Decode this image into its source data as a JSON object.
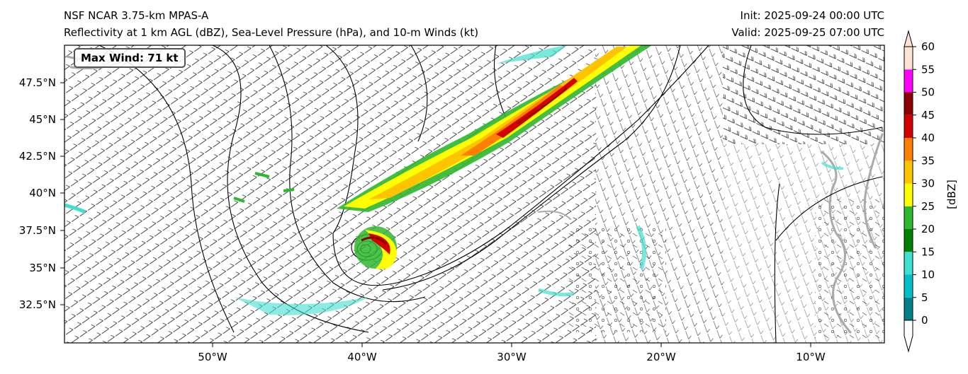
{
  "title": {
    "model": "NSF NCAR 3.75-km MPAS-A",
    "fields": "Reflectivity at 1 km AGL (dBZ), Sea-Level Pressure (hPa), and 10-m Winds (kt)",
    "init": "Init: 2025-09-24 00:00 UTC",
    "valid": "Valid: 2025-09-25 07:00 UTC"
  },
  "annotation": {
    "max_wind": "Max Wind: 71 kt"
  },
  "axes": {
    "lat_labels": [
      "47.5°N",
      "45°N",
      "42.5°N",
      "40°N",
      "37.5°N",
      "35°N",
      "32.5°N"
    ],
    "lon_labels": [
      "50°W",
      "40°W",
      "30°W",
      "20°W",
      "10°W"
    ]
  },
  "colorbar": {
    "label": "[dBZ]",
    "ticks": [
      "0",
      "5",
      "10",
      "15",
      "20",
      "25",
      "30",
      "35",
      "40",
      "45",
      "50",
      "55",
      "60"
    ],
    "colors": [
      "#ffffff",
      "#00808a",
      "#00bfc8",
      "#40e0d0",
      "#008000",
      "#2eb82e",
      "#ffff00",
      "#ffc400",
      "#ff8000",
      "#d40000",
      "#8b0000",
      "#ff00ff",
      "#ffe4d6"
    ]
  },
  "colors": {
    "refl_low": "#40e0d0",
    "refl_green": "#2eb82e",
    "refl_yellow": "#ffff00",
    "refl_orange": "#ff8000",
    "refl_red": "#d40000",
    "refl_darkred": "#8b0000",
    "isobar": "#000000",
    "coast": "#aaaaaa"
  }
}
